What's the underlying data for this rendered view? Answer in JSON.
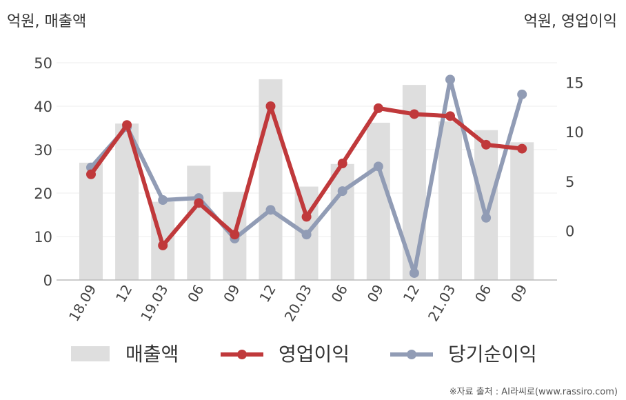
{
  "chart_data": {
    "type": "bar+line",
    "left_unit": "억원, 매출액",
    "right_unit": "억원, 영업이익",
    "categories": [
      "18.09",
      "12",
      "19.03",
      "06",
      "09",
      "12",
      "20.03",
      "06",
      "09",
      "12",
      "21.03",
      "06",
      "09"
    ],
    "left_axis": {
      "ylim": [
        0,
        50
      ],
      "ticks": [
        "0",
        "10",
        "20",
        "30",
        "40",
        "50"
      ]
    },
    "right_axis": {
      "ylim": [
        -5,
        17
      ],
      "ticks": [
        "0",
        "5",
        "10",
        "15"
      ]
    },
    "series": [
      {
        "name": "매출액",
        "type": "bar",
        "axis": "left",
        "color": "#dedede",
        "values": [
          27,
          36,
          18,
          26.3,
          20.3,
          46.2,
          21.5,
          26.7,
          36.2,
          44.9,
          36.5,
          34.5,
          31.7
        ]
      },
      {
        "name": "영업이익",
        "type": "line",
        "axis": "right",
        "color": "#c0393b",
        "values": [
          5.7,
          10.7,
          -1.5,
          2.8,
          -0.4,
          12.6,
          1.4,
          6.8,
          12.4,
          11.8,
          11.6,
          8.7,
          8.3
        ]
      },
      {
        "name": "당기순이익",
        "type": "line",
        "axis": "right",
        "color": "#919cb5",
        "values": [
          6.4,
          10.5,
          3.1,
          3.3,
          -0.8,
          2.1,
          -0.4,
          4.0,
          6.5,
          -4.3,
          15.3,
          1.3,
          13.8
        ]
      }
    ],
    "legend_position": "bottom",
    "grid": true
  },
  "source": "※자료 출처 : AI라씨로(www.rassiro.com)"
}
